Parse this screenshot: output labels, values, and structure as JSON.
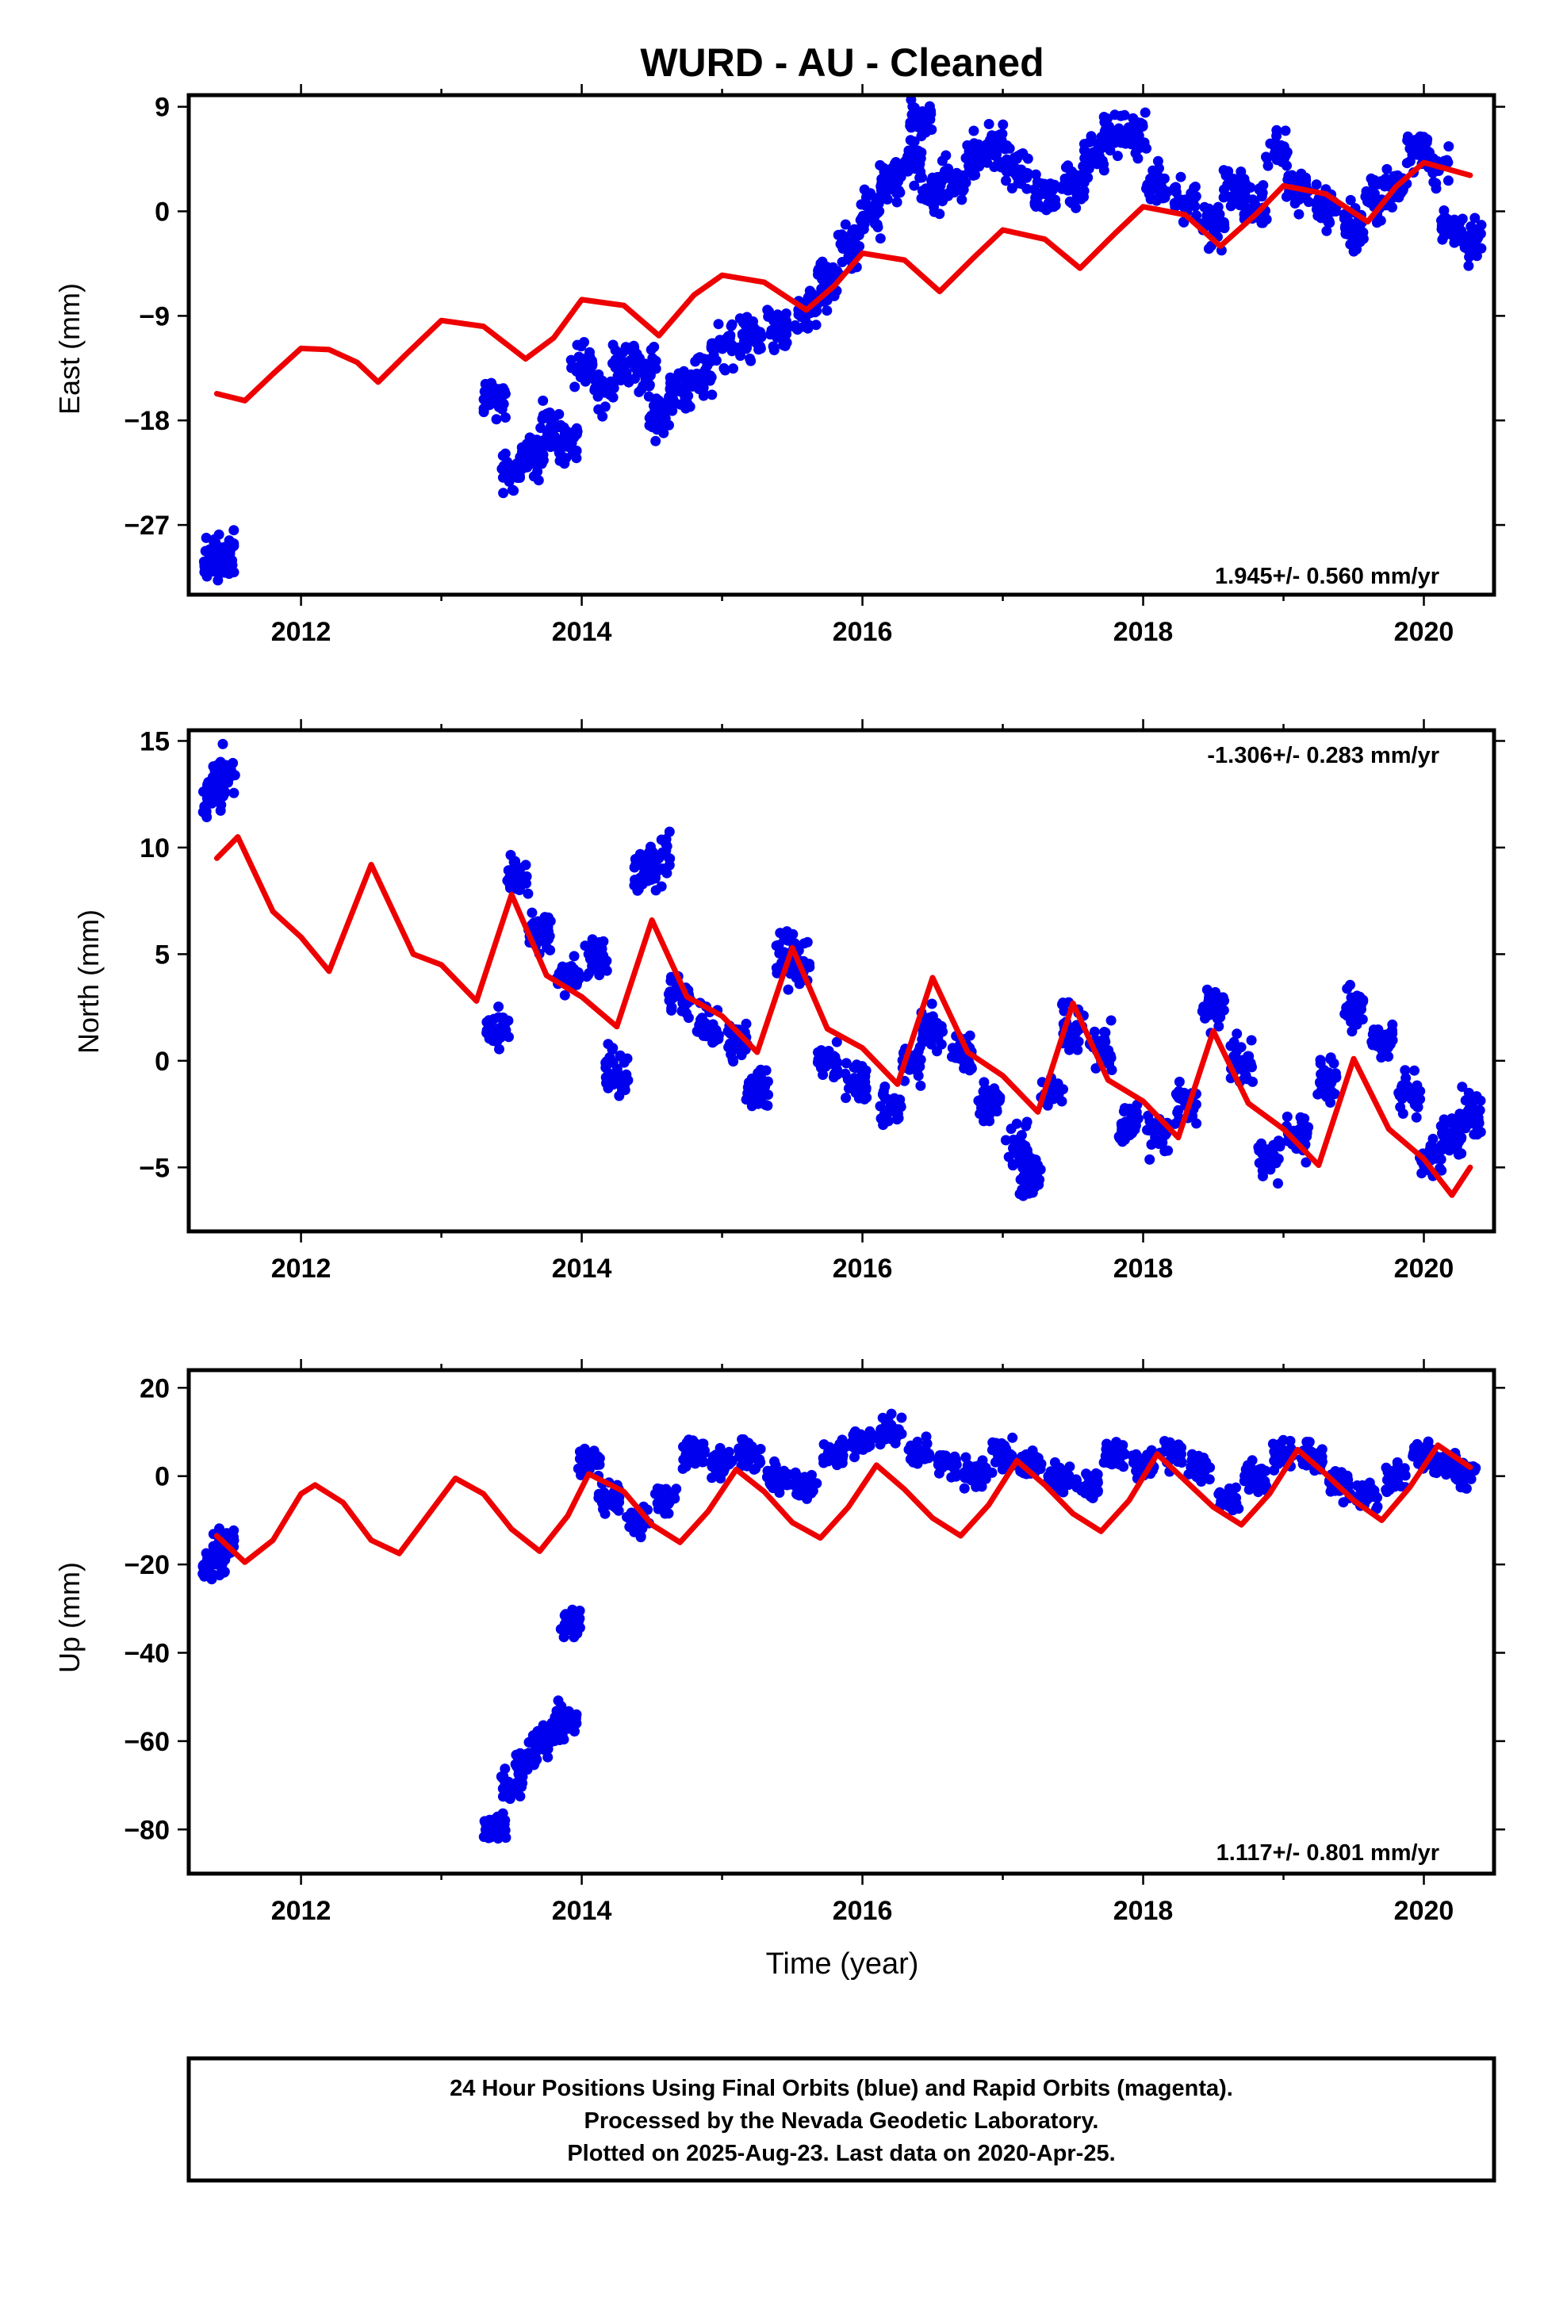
{
  "title": "WURD  - AU - Cleaned",
  "footer": {
    "line1": "24 Hour Positions Using Final Orbits (blue) and Rapid Orbits (magenta).",
    "line2": "Processed by the Nevada Geodetic Laboratory.",
    "line3": "Plotted on 2025-Aug-23. Last data on 2020-Apr-25."
  },
  "colors": {
    "data": "#0000ee",
    "fit": "#ee0000"
  },
  "chart_data": [
    {
      "type": "scatter",
      "ylabel": "East (mm)",
      "xlabel": "",
      "xlim": [
        2011.2,
        2020.5
      ],
      "ylim": [
        -33,
        10
      ],
      "xticks": [
        2012,
        2014,
        2016,
        2018,
        2020
      ],
      "yticks": [
        9,
        0,
        -9,
        -18,
        -27
      ],
      "ytick_labels": [
        "9",
        "0",
        "−9",
        "−18",
        "−27"
      ],
      "rate_text": "1.945+/- 0.560 mm/yr",
      "rate_position": "bottom-right",
      "series": [
        {
          "style": "points",
          "x": [
            2011.38,
            2011.45,
            2013.38,
            2013.5,
            2013.65,
            2013.78,
            2013.9,
            2014.0,
            2014.15,
            2014.3,
            2014.45,
            2014.55,
            2014.7,
            2014.85,
            2015.0,
            2015.2,
            2015.4,
            2015.6,
            2015.75,
            2015.9,
            2016.05,
            2016.2,
            2016.35,
            2016.42,
            2016.5,
            2016.65,
            2016.8,
            2016.95,
            2017.1,
            2017.3,
            2017.5,
            2017.65,
            2017.8,
            2017.95,
            2018.1,
            2018.3,
            2018.5,
            2018.65,
            2018.8,
            2018.95,
            2019.1,
            2019.3,
            2019.5,
            2019.65,
            2019.8,
            2019.95,
            2020.1,
            2020.2,
            2020.33
          ],
          "y": [
            -30.0,
            -29.5,
            -16.0,
            -22.0,
            -21.0,
            -18.5,
            -20.0,
            -13.0,
            -15.5,
            -13.0,
            -13.5,
            -17.5,
            -15.5,
            -14.0,
            -11.5,
            -11.0,
            -10.0,
            -8.5,
            -6.0,
            -3.0,
            0.0,
            2.5,
            4.5,
            7.5,
            1.5,
            2.5,
            4.5,
            5.5,
            3.5,
            1.5,
            2.5,
            4.5,
            6.5,
            6.5,
            2.0,
            1.0,
            -1.0,
            2.0,
            0.5,
            5.0,
            2.0,
            0.5,
            -1.5,
            1.0,
            2.0,
            5.5,
            4.0,
            -1.5,
            -2.5
          ]
        },
        {
          "style": "line",
          "x": [
            2011.4,
            2011.6,
            2011.8,
            2012.0,
            2012.2,
            2012.4,
            2012.55,
            2012.75,
            2013.0,
            2013.3,
            2013.6,
            2013.8,
            2014.0,
            2014.3,
            2014.55,
            2014.8,
            2015.0,
            2015.3,
            2015.6,
            2015.8,
            2016.0,
            2016.3,
            2016.55,
            2016.8,
            2017.0,
            2017.3,
            2017.55,
            2017.8,
            2018.0,
            2018.3,
            2018.55,
            2018.8,
            2019.0,
            2019.3,
            2019.6,
            2019.8,
            2020.0,
            2020.33
          ],
          "y": [
            -15.7,
            -16.3,
            -14.0,
            -11.8,
            -11.9,
            -13.0,
            -14.7,
            -12.3,
            -9.4,
            -9.9,
            -12.7,
            -10.9,
            -7.6,
            -8.1,
            -10.7,
            -7.2,
            -5.5,
            -6.1,
            -8.5,
            -6.4,
            -3.6,
            -4.2,
            -6.9,
            -3.9,
            -1.6,
            -2.4,
            -4.9,
            -1.9,
            0.4,
            -0.3,
            -3.0,
            -0.3,
            2.2,
            1.5,
            -0.9,
            2.1,
            4.2,
            3.1
          ]
        }
      ]
    },
    {
      "type": "scatter",
      "ylabel": "North (mm)",
      "xlabel": "",
      "xlim": [
        2011.2,
        2020.5
      ],
      "ylim": [
        -8,
        15.5
      ],
      "xticks": [
        2012,
        2014,
        2016,
        2018,
        2020
      ],
      "yticks": [
        15,
        10,
        5,
        0,
        -5
      ],
      "ytick_labels": [
        "15",
        "10",
        "5",
        "0",
        "−5"
      ],
      "rate_text": "-1.306+/- 0.283 mm/yr",
      "rate_position": "top-right",
      "series": [
        {
          "style": "points",
          "x": [
            2011.38,
            2011.45,
            2013.4,
            2013.55,
            2013.7,
            2013.9,
            2014.1,
            2014.25,
            2014.45,
            2014.55,
            2014.7,
            2014.9,
            2015.1,
            2015.25,
            2015.45,
            2015.55,
            2015.75,
            2015.95,
            2016.2,
            2016.35,
            2016.5,
            2016.7,
            2016.9,
            2017.1,
            2017.2,
            2017.35,
            2017.5,
            2017.7,
            2017.9,
            2018.1,
            2018.3,
            2018.5,
            2018.7,
            2018.9,
            2019.1,
            2019.3,
            2019.5,
            2019.7,
            2019.9,
            2020.05,
            2020.2,
            2020.33
          ],
          "y": [
            12.5,
            13.5,
            1.5,
            8.5,
            6.0,
            4.0,
            5.0,
            -0.5,
            9.0,
            9.5,
            3.0,
            1.5,
            1.0,
            -1.5,
            5.0,
            4.5,
            0.0,
            -1.0,
            -2.0,
            0.0,
            1.5,
            0.5,
            -2.0,
            -4.0,
            -5.5,
            -1.5,
            1.5,
            0.5,
            -3.0,
            -3.5,
            -2.0,
            2.5,
            0.0,
            -4.5,
            -3.5,
            -1.0,
            2.5,
            1.0,
            -1.5,
            -4.5,
            -3.5,
            -2.5
          ]
        },
        {
          "style": "line",
          "x": [
            2011.4,
            2011.55,
            2011.8,
            2012.0,
            2012.2,
            2012.5,
            2012.8,
            2013.0,
            2013.25,
            2013.5,
            2013.75,
            2014.0,
            2014.25,
            2014.5,
            2014.75,
            2015.0,
            2015.25,
            2015.5,
            2015.75,
            2016.0,
            2016.25,
            2016.5,
            2016.75,
            2017.0,
            2017.25,
            2017.5,
            2017.75,
            2018.0,
            2018.25,
            2018.5,
            2018.75,
            2019.0,
            2019.25,
            2019.5,
            2019.75,
            2020.0,
            2020.2,
            2020.33
          ],
          "y": [
            9.5,
            10.5,
            7.0,
            5.8,
            4.2,
            9.2,
            5.0,
            4.5,
            2.8,
            7.8,
            4.0,
            3.0,
            1.6,
            6.6,
            3.0,
            2.1,
            0.4,
            5.3,
            1.5,
            0.6,
            -1.1,
            3.9,
            0.4,
            -0.7,
            -2.4,
            2.7,
            -0.9,
            -1.9,
            -3.6,
            1.4,
            -2.0,
            -3.2,
            -4.9,
            0.1,
            -3.2,
            -4.6,
            -6.3,
            -5.0
          ]
        }
      ]
    },
    {
      "type": "scatter",
      "ylabel": "Up (mm)",
      "xlabel": "Time (year)",
      "xlim": [
        2011.2,
        2020.5
      ],
      "ylim": [
        -90,
        24
      ],
      "xticks": [
        2012,
        2014,
        2016,
        2018,
        2020
      ],
      "yticks": [
        20,
        0,
        -20,
        -40,
        -60,
        -80
      ],
      "ytick_labels": [
        "20",
        "0",
        "−20",
        "−40",
        "−60",
        "−80"
      ],
      "rate_text": "1.117+/- 0.801 mm/yr",
      "rate_position": "bottom-right",
      "series": [
        {
          "style": "points",
          "x": [
            2011.38,
            2011.45,
            2013.38,
            2013.5,
            2013.6,
            2013.7,
            2013.8,
            2013.9,
            2013.92,
            2014.05,
            2014.2,
            2014.4,
            2014.6,
            2014.8,
            2015.0,
            2015.2,
            2015.4,
            2015.6,
            2015.8,
            2016.0,
            2016.2,
            2016.4,
            2016.6,
            2016.8,
            2017.0,
            2017.2,
            2017.4,
            2017.6,
            2017.8,
            2018.0,
            2018.2,
            2018.4,
            2018.6,
            2018.8,
            2019.0,
            2019.2,
            2019.4,
            2019.6,
            2019.8,
            2020.0,
            2020.15,
            2020.3
          ],
          "y": [
            -20.0,
            -15.0,
            -80.0,
            -70.0,
            -65.0,
            -60.0,
            -58.0,
            -55.0,
            -33.0,
            3.0,
            -5.0,
            -10.0,
            -5.0,
            5.0,
            3.0,
            5.0,
            0.0,
            -2.0,
            5.0,
            8.0,
            10.0,
            5.0,
            3.0,
            0.0,
            5.0,
            3.0,
            0.0,
            -2.0,
            5.0,
            3.0,
            5.0,
            2.0,
            -5.0,
            0.0,
            5.0,
            5.0,
            -2.0,
            -5.0,
            0.0,
            5.0,
            3.0,
            0.0
          ]
        },
        {
          "style": "line",
          "x": [
            2011.4,
            2011.6,
            2011.8,
            2012.0,
            2012.1,
            2012.3,
            2012.5,
            2012.7,
            2012.9,
            2013.1,
            2013.3,
            2013.5,
            2013.7,
            2013.9,
            2014.05,
            2014.3,
            2014.5,
            2014.7,
            2014.9,
            2015.1,
            2015.3,
            2015.5,
            2015.7,
            2015.9,
            2016.1,
            2016.3,
            2016.5,
            2016.7,
            2016.9,
            2017.1,
            2017.3,
            2017.5,
            2017.7,
            2017.9,
            2018.1,
            2018.3,
            2018.5,
            2018.7,
            2018.9,
            2019.1,
            2019.3,
            2019.5,
            2019.7,
            2019.9,
            2020.1,
            2020.33
          ],
          "y": [
            -13.5,
            -19.5,
            -14.5,
            -4.0,
            -2.0,
            -6.0,
            -14.5,
            -17.5,
            -9.0,
            -0.5,
            -4.0,
            -12.0,
            -17.0,
            -9.0,
            0.5,
            -3.5,
            -11.0,
            -15.0,
            -8.0,
            1.5,
            -3.5,
            -10.5,
            -14.0,
            -7.0,
            2.5,
            -3.0,
            -9.5,
            -13.5,
            -6.5,
            3.5,
            -2.0,
            -8.5,
            -12.5,
            -5.5,
            5.0,
            -1.0,
            -7.0,
            -11.0,
            -4.0,
            6.0,
            0.5,
            -5.5,
            -10.0,
            -2.5,
            7.0,
            2.0
          ]
        }
      ]
    }
  ]
}
